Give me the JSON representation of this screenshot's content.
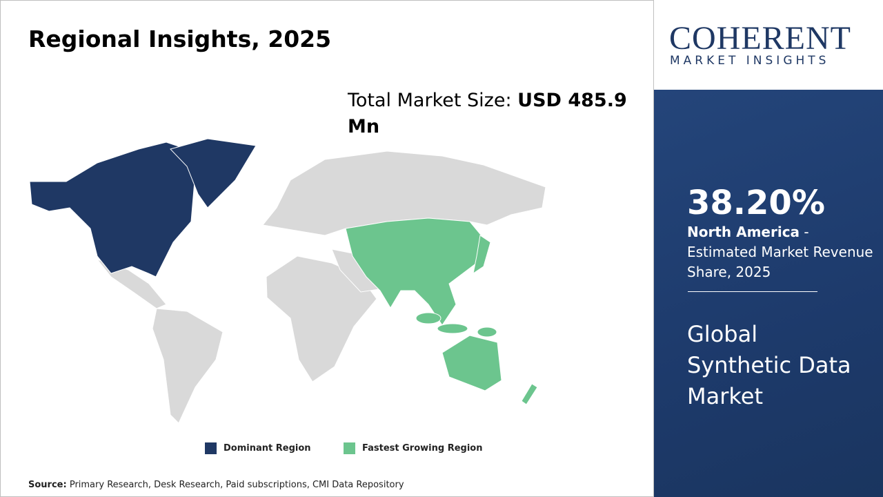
{
  "header": {
    "title": "Regional Insights, 2025"
  },
  "market_size": {
    "label": "Total Market Size:",
    "value": "USD 485.9 Mn"
  },
  "legend": {
    "dominant": "Dominant Region",
    "fastest": "Fastest Growing Region"
  },
  "source": {
    "label": "Source:",
    "text": "Primary Research, Desk Research, Paid subscriptions, CMI Data Repository"
  },
  "logo": {
    "name": "COHERENT",
    "tagline": "MARKET INSIGHTS"
  },
  "highlight": {
    "share": "38.20%",
    "region": "North America",
    "description": "- Estimated Market Revenue Share, 2025",
    "market": "Global Synthetic Data Market"
  }
}
